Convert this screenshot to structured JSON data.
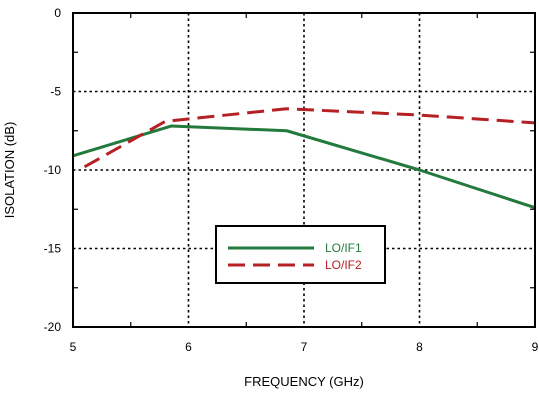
{
  "chart_data": {
    "type": "line",
    "title": "",
    "xlabel": "FREQUENCY (GHz)",
    "ylabel": "ISOLATION (dB)",
    "xlim": [
      5,
      9
    ],
    "ylim": [
      -20,
      0
    ],
    "xticks": [
      5,
      6,
      7,
      8,
      9
    ],
    "yticks": [
      0,
      -5,
      -10,
      -15,
      -20
    ],
    "grid": true,
    "legend_position": "lower-center",
    "series": [
      {
        "name": "LO/IF1",
        "color": "#237a3c",
        "style": "solid",
        "x": [
          5.0,
          5.85,
          6.85,
          8.0,
          9.0
        ],
        "y": [
          -9.1,
          -7.2,
          -7.5,
          -10.0,
          -12.4
        ]
      },
      {
        "name": "LO/IF2",
        "color": "#b52025",
        "style": "dashed",
        "x": [
          5.1,
          5.8,
          6.85,
          8.0,
          9.0
        ],
        "y": [
          -9.8,
          -6.9,
          -6.1,
          -6.5,
          -7.0
        ]
      }
    ]
  }
}
